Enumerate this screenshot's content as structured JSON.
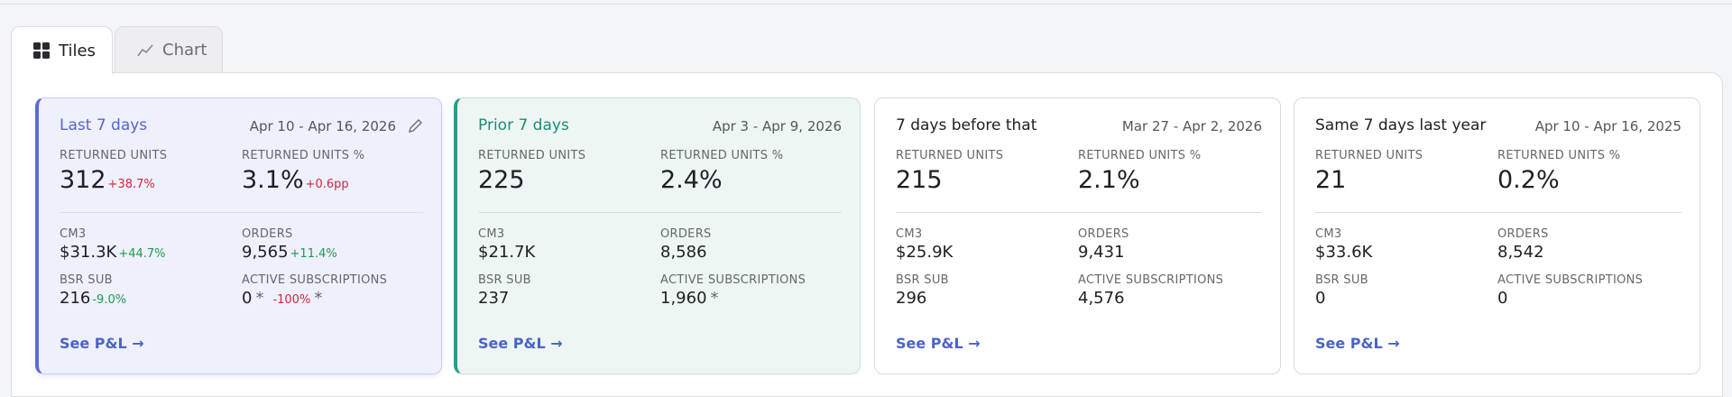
{
  "tabs": [
    "Tiles",
    "Chart"
  ],
  "cards": [
    {
      "title": "Last 7 days",
      "date_range": "Apr 10 - Apr 16, 2026",
      "link": "See P&L →",
      "metrics": [
        {
          "label": "RETURNED UNITS",
          "value": "312",
          "change": "+38.7%",
          "change_color": "#d3263a"
        },
        {
          "label": "RETURNED UNITS %",
          "value": "3.1%",
          "change": "+0.6pp",
          "change_color": "#d3263a"
        },
        {
          "label": "CM3",
          "value": "$31.3K",
          "change": "+44.7%",
          "change_color": "#1f9a4e"
        },
        {
          "label": "ORDERS",
          "value": "9,565",
          "change": "+11.4%",
          "change_color": "#1f9a4e"
        },
        {
          "label": "BSR SUB",
          "value": "216",
          "change": "-9.0%",
          "change_color": "#1f9a4e"
        },
        {
          "label": "ACTIVE SUBSCRIPTIONS",
          "value": "0",
          "flag": "*",
          "change": "-100%",
          "change_color": "#d3263a",
          "change_flag": "*"
        }
      ]
    },
    {
      "title": "Prior 7 days",
      "date_range": "Apr 3 - Apr 9, 2026",
      "link": "See P&L →",
      "metrics": [
        {
          "label": "RETURNED UNITS",
          "value": "225"
        },
        {
          "label": "RETURNED UNITS %",
          "value": "2.4%"
        },
        {
          "label": "CM3",
          "value": "$21.7K"
        },
        {
          "label": "ORDERS",
          "value": "8,586"
        },
        {
          "label": "BSR SUB",
          "value": "237"
        },
        {
          "label": "ACTIVE SUBSCRIPTIONS",
          "value": "1,960",
          "flag": "*"
        }
      ]
    },
    {
      "title": "7 days before that",
      "date_range": "Mar 27 - Apr 2, 2026",
      "link": "See P&L →",
      "metrics": [
        {
          "label": "RETURNED UNITS",
          "value": "215"
        },
        {
          "label": "RETURNED UNITS %",
          "value": "2.1%"
        },
        {
          "label": "CM3",
          "value": "$25.9K"
        },
        {
          "label": "ORDERS",
          "value": "9,431"
        },
        {
          "label": "BSR SUB",
          "value": "296"
        },
        {
          "label": "ACTIVE SUBSCRIPTIONS",
          "value": "4,576"
        }
      ]
    },
    {
      "title": "Same 7 days last year",
      "date_range": "Apr 10 - Apr 16, 2025",
      "link": "See P&L →",
      "metrics": [
        {
          "label": "RETURNED UNITS",
          "value": "21"
        },
        {
          "label": "RETURNED UNITS %",
          "value": "0.2%"
        },
        {
          "label": "CM3",
          "value": "$33.6K"
        },
        {
          "label": "ORDERS",
          "value": "8,542"
        },
        {
          "label": "BSR SUB",
          "value": "0"
        },
        {
          "label": "ACTIVE SUBSCRIPTIONS",
          "value": "0"
        }
      ]
    }
  ]
}
